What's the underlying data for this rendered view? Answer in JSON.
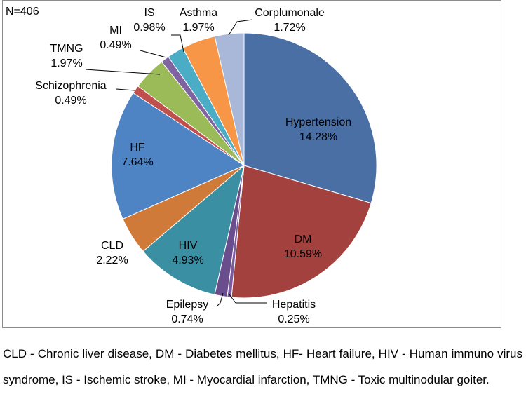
{
  "chart_data": {
    "type": "pie",
    "annotation": "N=406",
    "start_angle_deg": 0,
    "direction": "clockwise",
    "slices": [
      {
        "name": "Hypertension",
        "pct_label": "14.28%",
        "value": 14.28,
        "color": "#4A6FA5"
      },
      {
        "name": "DM",
        "pct_label": "10.59%",
        "value": 10.59,
        "color": "#A3413E"
      },
      {
        "name": "Hepatitis",
        "pct_label": "0.25%",
        "value": 0.25,
        "color": "#7B5BA0"
      },
      {
        "name": "Epilepsy",
        "pct_label": "0.74%",
        "value": 0.74,
        "color": "#6A4D8C"
      },
      {
        "name": "HIV",
        "pct_label": "4.93%",
        "value": 4.93,
        "color": "#3A8FA2"
      },
      {
        "name": "CLD",
        "pct_label": "2.22%",
        "value": 2.22,
        "color": "#D07A3A"
      },
      {
        "name": "HF",
        "pct_label": "7.64%",
        "value": 7.64,
        "color": "#4E84C4"
      },
      {
        "name": "Schizophrenia",
        "pct_label": "0.49%",
        "value": 0.49,
        "color": "#C0504D"
      },
      {
        "name": "TMNG",
        "pct_label": "1.97%",
        "value": 1.97,
        "color": "#9BBB59"
      },
      {
        "name": "MI",
        "pct_label": "0.49%",
        "value": 0.49,
        "color": "#8064A2"
      },
      {
        "name": "IS",
        "pct_label": "0.98%",
        "value": 0.98,
        "color": "#4BACC6"
      },
      {
        "name": "Asthma",
        "pct_label": "1.97%",
        "value": 1.97,
        "color": "#F79646"
      },
      {
        "name": "Corplumonale",
        "pct_label": "1.72%",
        "value": 1.72,
        "color": "#A9B8D8"
      }
    ]
  },
  "footnote": "CLD - Chronic liver disease, DM - Diabetes mellitus, HF- Heart failure, HIV - Human immuno virus syndrome, IS - Ischemic stroke, MI - Myocardial infarction, TMNG - Toxic multinodular goiter."
}
